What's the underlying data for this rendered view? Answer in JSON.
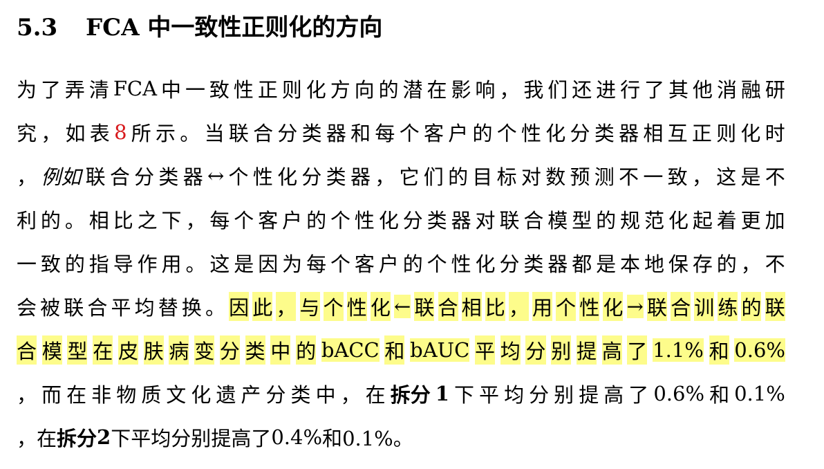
{
  "section": {
    "number": "5.3",
    "title": "FCA 中一致性正则化的方向"
  },
  "lines": [
    [
      "为",
      "了",
      "弄",
      "清",
      " FCA ",
      "中",
      "一",
      "致",
      "性",
      "正",
      "则",
      "化",
      "方",
      "向",
      "的",
      "潜",
      "在",
      "影",
      "响",
      "，",
      "我",
      "们",
      "还",
      "进",
      "行",
      "了",
      "其",
      "他",
      "消",
      "融",
      "研"
    ],
    [
      "究",
      "，",
      "如",
      "表",
      " 8 ",
      "所",
      "示",
      "。",
      "当",
      "联",
      "合",
      "分",
      "类",
      "器",
      "和",
      "每",
      "个",
      "客",
      "户",
      "的",
      "个",
      "性",
      "化",
      "分",
      "类",
      "器",
      "相",
      "互",
      "正",
      "则",
      "化",
      "时"
    ],
    [
      "，",
      " 例如",
      "联",
      "合",
      "分",
      "类",
      "器",
      " ↔ ",
      "个",
      "性",
      "化",
      "分",
      "类",
      "器",
      "，",
      "它",
      "们",
      "的",
      "目",
      "标",
      "对",
      "数",
      "预",
      "测",
      "不",
      "一",
      "致",
      "，",
      "这",
      "是",
      "不"
    ],
    [
      "利",
      "的",
      "。",
      "相",
      "比",
      "之",
      "下",
      "，",
      "每",
      "个",
      "客",
      "户",
      "的",
      "个",
      "性",
      "化",
      "分",
      "类",
      "器",
      "对",
      "联",
      "合",
      "模",
      "型",
      "的",
      "规",
      "范",
      "化",
      "起",
      "着",
      "更",
      "加"
    ],
    [
      "一",
      "致",
      "的",
      "指",
      "导",
      "作",
      "用",
      "。",
      "这",
      "是",
      "因",
      "为",
      "每",
      "个",
      "客",
      "户",
      "的",
      "个",
      "性",
      "化",
      "分",
      "类",
      "器",
      "都",
      "是",
      "本",
      "地",
      "保",
      "存",
      "的",
      "，",
      "不"
    ],
    [
      "会",
      "被",
      "联",
      "合",
      "平",
      "均",
      "替",
      "换",
      "。",
      "因",
      "此",
      "，",
      "与",
      "个",
      "性",
      "化",
      "←",
      "联",
      "合",
      "相",
      "比",
      "，",
      "用",
      "个",
      "性",
      "化",
      "→",
      "联",
      "合",
      "训",
      "练",
      "的",
      "联"
    ],
    [
      "合",
      "模",
      "型",
      "在",
      "皮",
      "肤",
      "病",
      "变",
      "分",
      "类",
      "中",
      "的",
      " bACC ",
      "和",
      " bAUC ",
      "平",
      "均",
      "分",
      "别",
      "提",
      "高",
      "了",
      " 1.1% ",
      "和",
      " 0.6%"
    ],
    [
      "，",
      "而",
      "在",
      "非",
      "物",
      "质",
      "文",
      "化",
      "遗",
      "产",
      "分",
      "类",
      "中",
      "，",
      "在",
      "拆分",
      " 1 ",
      "下",
      "平",
      "均",
      "分",
      "别",
      "提",
      "高",
      "了",
      " 0.6% ",
      "和",
      " 0.1%"
    ],
    [
      "，",
      "在",
      "拆分",
      " 2 ",
      "下",
      "平",
      "均",
      "分",
      "别",
      "提",
      "高",
      "了",
      " 0.4% ",
      "和",
      " 0.1%。"
    ]
  ]
}
